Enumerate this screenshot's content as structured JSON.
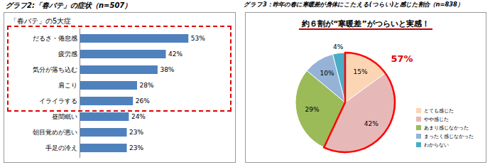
{
  "chart_data": [
    {
      "type": "bar",
      "orientation": "horizontal",
      "title": "グラフ2:「春バテ」の症状（n=507）",
      "subtitle": "「春バテ」の5大症",
      "categories": [
        "だるさ・倦怠感",
        "疲労感",
        "気分が落ち込む",
        "肩こり",
        "イライラする",
        "昼間眠い",
        "朝目覚めが悪い",
        "手足の冷え"
      ],
      "values": [
        53,
        42,
        38,
        28,
        26,
        24,
        23,
        23
      ],
      "value_labels": [
        "53%",
        "42%",
        "38%",
        "28%",
        "26%",
        "24%",
        "23%",
        "23%"
      ],
      "color": "#4f81bd",
      "xlim": [
        0,
        65
      ],
      "data_labels": true,
      "tick_labels": "y"
    },
    {
      "type": "pie",
      "title": "グラフ3：昨年の春に寒暖差が身体にこたえる(つらい)と感じた割合（n=838）",
      "subtitle": "約６割が“寒暖差”がつらいと実感！",
      "categories": [
        "とても感じた",
        "やや感じた",
        "あまり感じなかった",
        "まったく感じなかった",
        "わからない"
      ],
      "values": [
        15,
        42,
        29,
        10,
        4
      ],
      "value_labels": [
        "15%",
        "42%",
        "29%",
        "10%",
        "4%"
      ],
      "colors": [
        "#fcd5b5",
        "#e6b9b8",
        "#9bbb59",
        "#95b3d7",
        "#4bacc6"
      ],
      "annotations": [
        "57%"
      ],
      "data_labels": true,
      "legend": "right"
    }
  ]
}
